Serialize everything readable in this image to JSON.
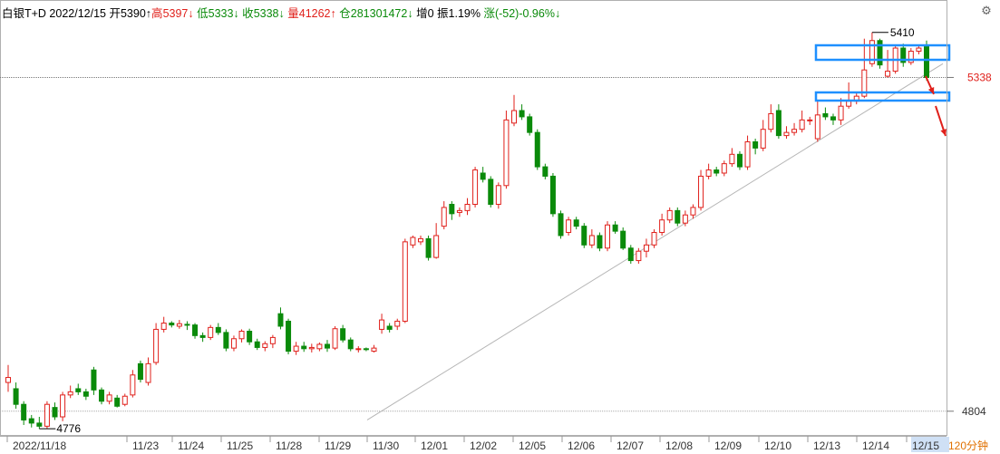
{
  "header": {
    "title": "白银T+D 2022/12/15",
    "open": "开5390↑",
    "high_label": "高",
    "high_value": "5397↓",
    "low_label": "低",
    "low_value": "5333↓",
    "close_label": "收",
    "close_value": "5338↓",
    "volume_label": "量",
    "volume_value": "41262↑",
    "oi_label": "仓",
    "oi_value": "281301472↓",
    "inc": "增0",
    "amp": "振1.19%",
    "chg": "涨(-52)-0.96%↓",
    "settings_icon": "gear-icon"
  },
  "period_label": "120分钟",
  "colors": {
    "up": "#e0201b",
    "down": "#0a8a0a",
    "highlight": "#1e90ff",
    "grid": "#888888"
  },
  "chart_data": {
    "type": "candlestick",
    "title": "",
    "y_axis_labels": [
      "5338",
      "4804"
    ],
    "last_price": 5338,
    "max_label": "5410",
    "min_label": "4776",
    "x_tick_labels": [
      "2022/11/18",
      "11/23",
      "11/24",
      "11/25",
      "11/28",
      "11/29",
      "11/30",
      "12/01",
      "12/02",
      "12/05",
      "12/06",
      "12/07",
      "12/08",
      "12/09",
      "12/10",
      "12/13",
      "12/14",
      "12/15"
    ],
    "trendline": {
      "from": [
        "2022/11/30",
        4790
      ],
      "to": [
        "2022/12/15",
        5360
      ]
    },
    "ylim": [
      4766,
      5430
    ],
    "candles": [
      [
        4850,
        4858,
        4878,
        4835
      ],
      [
        4840,
        4815,
        4850,
        4808
      ],
      [
        4815,
        4790,
        4820,
        4782
      ],
      [
        4792,
        4785,
        4798,
        4778
      ],
      [
        4785,
        4780,
        4795,
        4776
      ],
      [
        4780,
        4815,
        4820,
        4776
      ],
      [
        4810,
        4795,
        4818,
        4790
      ],
      [
        4795,
        4830,
        4835,
        4788
      ],
      [
        4830,
        4835,
        4845,
        4825
      ],
      [
        4840,
        4835,
        4848,
        4830
      ],
      [
        4835,
        4828,
        4840,
        4822
      ],
      [
        4870,
        4838,
        4875,
        4830
      ],
      [
        4838,
        4820,
        4842,
        4815
      ],
      [
        4820,
        4830,
        4835,
        4815
      ],
      [
        4825,
        4812,
        4830,
        4810
      ],
      [
        4815,
        4828,
        4832,
        4812
      ],
      [
        4830,
        4862,
        4870,
        4826
      ],
      [
        4880,
        4855,
        4885,
        4850
      ],
      [
        4850,
        4880,
        4890,
        4845
      ],
      [
        4882,
        4935,
        4945,
        4878
      ],
      [
        4935,
        4945,
        4955,
        4930
      ],
      [
        4945,
        4942,
        4948,
        4938
      ],
      [
        4940,
        4944,
        4950,
        4936
      ],
      [
        4943,
        4942,
        4948,
        4934
      ],
      [
        4942,
        4925,
        4945,
        4920
      ],
      [
        4925,
        4922,
        4930,
        4915
      ],
      [
        4922,
        4938,
        4942,
        4918
      ],
      [
        4938,
        4930,
        4945,
        4926
      ],
      [
        4930,
        4905,
        4935,
        4900
      ],
      [
        4905,
        4920,
        4925,
        4900
      ],
      [
        4920,
        4932,
        4935,
        4914
      ],
      [
        4932,
        4915,
        4936,
        4910
      ],
      [
        4915,
        4906,
        4920,
        4902
      ],
      [
        4906,
        4912,
        4916,
        4900
      ],
      [
        4912,
        4922,
        4926,
        4905
      ],
      [
        4960,
        4940,
        4970,
        4935
      ],
      [
        4948,
        4900,
        4952,
        4895
      ],
      [
        4900,
        4908,
        4915,
        4894
      ],
      [
        4908,
        4904,
        4915,
        4899
      ],
      [
        4904,
        4906,
        4912,
        4898
      ],
      [
        4904,
        4911,
        4914,
        4900
      ],
      [
        4911,
        4905,
        4918,
        4899
      ],
      [
        4905,
        4936,
        4940,
        4902
      ],
      [
        4936,
        4918,
        4942,
        4914
      ],
      [
        4918,
        4904,
        4922,
        4900
      ],
      [
        4904,
        4904,
        4908,
        4898
      ],
      [
        4904,
        4903,
        4906,
        4900
      ],
      [
        4900,
        4905,
        4910,
        4898
      ],
      [
        4935,
        4950,
        4960,
        4928
      ],
      [
        4940,
        4935,
        4945,
        4930
      ],
      [
        4940,
        4948,
        4952,
        4934
      ],
      [
        4948,
        5075,
        5080,
        4945
      ],
      [
        5070,
        5082,
        5085,
        5065
      ],
      [
        5075,
        5080,
        5085,
        5070
      ],
      [
        5080,
        5050,
        5085,
        5045
      ],
      [
        5050,
        5085,
        5105,
        5048
      ],
      [
        5100,
        5130,
        5140,
        5095
      ],
      [
        5135,
        5120,
        5140,
        5110
      ],
      [
        5122,
        5125,
        5130,
        5115
      ],
      [
        5125,
        5135,
        5145,
        5118
      ],
      [
        5135,
        5190,
        5195,
        5130
      ],
      [
        5185,
        5175,
        5195,
        5170
      ],
      [
        5175,
        5135,
        5180,
        5130
      ],
      [
        5135,
        5165,
        5170,
        5128
      ],
      [
        5165,
        5270,
        5285,
        5160
      ],
      [
        5265,
        5285,
        5310,
        5260
      ],
      [
        5285,
        5275,
        5295,
        5270
      ],
      [
        5275,
        5250,
        5280,
        5245
      ],
      [
        5250,
        5195,
        5255,
        5190
      ],
      [
        5195,
        5180,
        5200,
        5175
      ],
      [
        5180,
        5120,
        5185,
        5115
      ],
      [
        5120,
        5085,
        5125,
        5080
      ],
      [
        5090,
        5110,
        5115,
        5085
      ],
      [
        5110,
        5100,
        5115,
        5095
      ],
      [
        5100,
        5070,
        5105,
        5065
      ],
      [
        5070,
        5085,
        5095,
        5065
      ],
      [
        5085,
        5065,
        5090,
        5060
      ],
      [
        5065,
        5102,
        5108,
        5060
      ],
      [
        5102,
        5092,
        5108,
        5088
      ],
      [
        5092,
        5065,
        5098,
        5062
      ],
      [
        5065,
        5045,
        5070,
        5040
      ],
      [
        5045,
        5060,
        5065,
        5040
      ],
      [
        5060,
        5070,
        5080,
        5050
      ],
      [
        5070,
        5090,
        5095,
        5065
      ],
      [
        5090,
        5110,
        5120,
        5085
      ],
      [
        5110,
        5125,
        5130,
        5105
      ],
      [
        5125,
        5105,
        5130,
        5100
      ],
      [
        5105,
        5118,
        5125,
        5100
      ],
      [
        5118,
        5130,
        5135,
        5112
      ],
      [
        5130,
        5180,
        5190,
        5125
      ],
      [
        5180,
        5190,
        5200,
        5175
      ],
      [
        5190,
        5185,
        5195,
        5180
      ],
      [
        5185,
        5200,
        5205,
        5180
      ],
      [
        5200,
        5215,
        5225,
        5195
      ],
      [
        5215,
        5195,
        5220,
        5190
      ],
      [
        5195,
        5235,
        5245,
        5190
      ],
      [
        5235,
        5225,
        5240,
        5215
      ],
      [
        5225,
        5255,
        5270,
        5220
      ],
      [
        5255,
        5280,
        5295,
        5250
      ],
      [
        5285,
        5245,
        5295,
        5240
      ],
      [
        5245,
        5250,
        5260,
        5240
      ],
      [
        5250,
        5255,
        5265,
        5245
      ],
      [
        5255,
        5270,
        5285,
        5250
      ],
      [
        5270,
        5270,
        5275,
        5262
      ],
      [
        5240,
        5278,
        5300,
        5235
      ],
      [
        5280,
        5275,
        5290,
        5270
      ],
      [
        5275,
        5270,
        5280,
        5262
      ],
      [
        5270,
        5292,
        5305,
        5262
      ],
      [
        5292,
        5300,
        5330,
        5288
      ],
      [
        5300,
        5308,
        5315,
        5295
      ],
      [
        5308,
        5350,
        5400,
        5305
      ],
      [
        5360,
        5397,
        5410,
        5355
      ],
      [
        5397,
        5358,
        5400,
        5352
      ],
      [
        5340,
        5348,
        5382,
        5338
      ],
      [
        5348,
        5385,
        5390,
        5344
      ],
      [
        5385,
        5362,
        5392,
        5355
      ],
      [
        5362,
        5380,
        5385,
        5358
      ],
      [
        5380,
        5385,
        5390,
        5375
      ],
      [
        5390,
        5338,
        5397,
        5333
      ]
    ]
  }
}
